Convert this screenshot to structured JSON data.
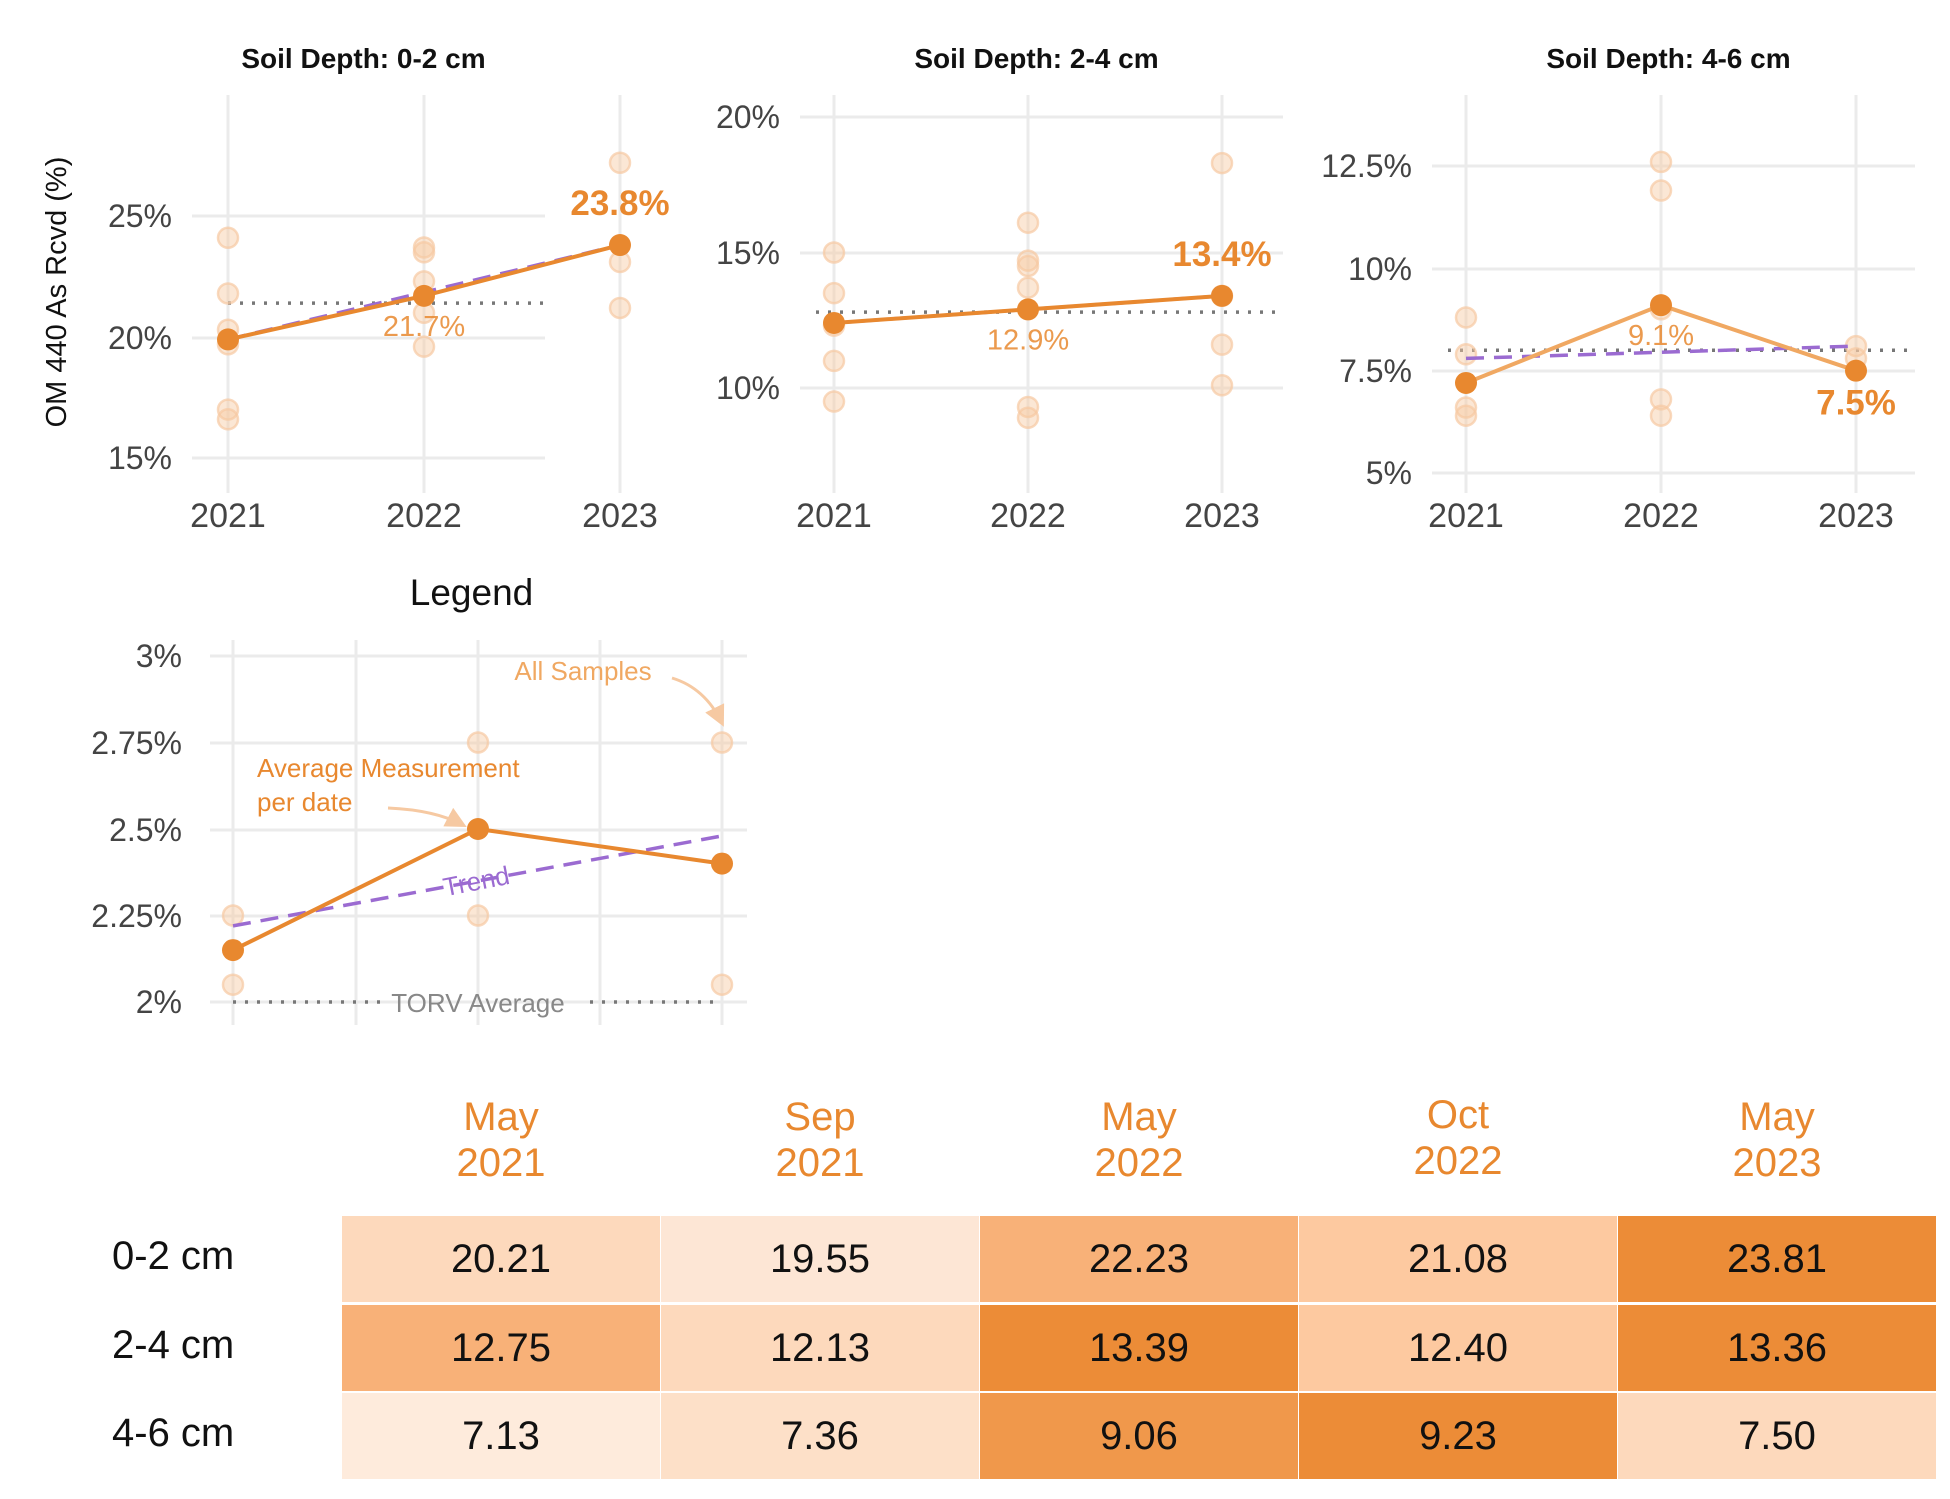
{
  "y_axis_label": "OM 440 As Rcvd (%)",
  "colors": {
    "accent": "#e8882f",
    "sample": "#f6c9a2",
    "trend": "#9b6bd1",
    "torv": "#777777",
    "grid": "#ebebeb"
  },
  "chart_data": [
    {
      "type": "line",
      "title": "Soil Depth: 0-2 cm",
      "ylabel": "OM 440 As Rcvd (%)",
      "x": [
        "2021",
        "2022",
        "2023"
      ],
      "ylim": [
        14.2,
        29.2
      ],
      "yticks": [
        15,
        20,
        25
      ],
      "ytick_labels": [
        "15%",
        "20%",
        "25%"
      ],
      "samples": [
        [
          2021,
          24.1
        ],
        [
          2021,
          21.8
        ],
        [
          2021,
          20.3
        ],
        [
          2021,
          19.7
        ],
        [
          2021,
          17.0
        ],
        [
          2021,
          16.6
        ],
        [
          2022,
          23.7
        ],
        [
          2022,
          23.5
        ],
        [
          2022,
          22.3
        ],
        [
          2022,
          21.0
        ],
        [
          2022,
          19.6
        ],
        [
          2023,
          27.2
        ],
        [
          2023,
          23.1
        ],
        [
          2023,
          21.2
        ]
      ],
      "average": [
        19.9,
        21.7,
        23.8
      ],
      "trend": [
        19.9,
        21.85,
        23.8
      ],
      "torv_average": 21.4,
      "labels": [
        "",
        "21.7%",
        "23.8%"
      ]
    },
    {
      "type": "line",
      "title": "Soil Depth: 2-4 cm",
      "ylabel": "",
      "x": [
        "2021",
        "2022",
        "2023"
      ],
      "ylim": [
        6.1,
        20.8
      ],
      "yticks": [
        10,
        15,
        20
      ],
      "ytick_labels": [
        "10%",
        "15%",
        "20%"
      ],
      "samples": [
        [
          2021,
          15.0
        ],
        [
          2021,
          13.5
        ],
        [
          2021,
          12.3
        ],
        [
          2021,
          11.0
        ],
        [
          2021,
          9.5
        ],
        [
          2022,
          16.1
        ],
        [
          2022,
          14.7
        ],
        [
          2022,
          14.5
        ],
        [
          2022,
          13.7
        ],
        [
          2022,
          9.3
        ],
        [
          2022,
          8.9
        ],
        [
          2023,
          18.3
        ],
        [
          2023,
          13.4
        ],
        [
          2023,
          11.6
        ],
        [
          2023,
          10.1
        ]
      ],
      "average": [
        12.4,
        12.9,
        13.4
      ],
      "trend": [
        12.4,
        12.9,
        13.4
      ],
      "torv_average": 12.8,
      "labels": [
        "",
        "12.9%",
        "13.4%"
      ]
    },
    {
      "type": "line",
      "title": "Soil Depth: 4-6 cm",
      "ylabel": "",
      "x": [
        "2021",
        "2022",
        "2023"
      ],
      "ylim": [
        4.6,
        14.5
      ],
      "yticks": [
        5,
        7.5,
        10,
        12.5
      ],
      "ytick_labels": [
        "5%",
        "7.5%",
        "10%",
        "12.5%"
      ],
      "samples": [
        [
          2021,
          8.8
        ],
        [
          2021,
          7.9
        ],
        [
          2021,
          6.6
        ],
        [
          2021,
          6.4
        ],
        [
          2022,
          12.6
        ],
        [
          2022,
          11.9
        ],
        [
          2022,
          9.0
        ],
        [
          2022,
          6.8
        ],
        [
          2022,
          6.4
        ],
        [
          2023,
          8.1
        ],
        [
          2023,
          7.8
        ]
      ],
      "average": [
        7.2,
        9.1,
        7.5
      ],
      "trend": [
        7.8,
        7.95,
        8.1
      ],
      "torv_average": 8.0,
      "labels": [
        "",
        "9.1%",
        "7.5%"
      ]
    },
    {
      "type": "line",
      "title": "Legend",
      "ylabel": "",
      "x": [
        "",
        "",
        ""
      ],
      "ylim": [
        1.95,
        3.05
      ],
      "yticks": [
        2,
        2.25,
        2.5,
        2.75,
        3
      ],
      "ytick_labels": [
        "2%",
        "2.25%",
        "2.5%",
        "2.75%",
        "3%"
      ],
      "samples": [
        [
          1,
          2.25
        ],
        [
          1,
          2.05
        ],
        [
          2,
          2.75
        ],
        [
          2,
          2.25
        ],
        [
          3,
          2.75
        ],
        [
          3,
          2.05
        ]
      ],
      "average": [
        2.15,
        2.5,
        2.4
      ],
      "trend": [
        2.22,
        2.35,
        2.48
      ],
      "torv_average": 2.0,
      "annotations": [
        "All Samples",
        "Average Measurement",
        "per date",
        "Trend",
        "TORV Average"
      ]
    },
    {
      "type": "heatmap",
      "columns": [
        {
          "month": "May",
          "year": "2021"
        },
        {
          "month": "Sep",
          "year": "2021"
        },
        {
          "month": "May",
          "year": "2022"
        },
        {
          "month": "Oct",
          "year": "2022"
        },
        {
          "month": "May",
          "year": "2023"
        }
      ],
      "rows": [
        {
          "label": "0-2 cm",
          "values": [
            "20.21",
            "19.55",
            "22.23",
            "21.08",
            "23.81"
          ],
          "colors": [
            "#fdd9bc",
            "#fde6d5",
            "#f8b178",
            "#fdc9a0",
            "#ec8c37"
          ]
        },
        {
          "label": "2-4 cm",
          "values": [
            "12.75",
            "12.13",
            "13.39",
            "12.40",
            "13.36"
          ],
          "colors": [
            "#f8b178",
            "#fdd9bc",
            "#ec8c37",
            "#fdc9a0",
            "#ec8c37"
          ]
        },
        {
          "label": "4-6 cm",
          "values": [
            "7.13",
            "7.36",
            "9.06",
            "9.23",
            "7.50"
          ],
          "colors": [
            "#feebdc",
            "#fde0c8",
            "#f0984b",
            "#ec8c37",
            "#fdd9bc"
          ]
        }
      ]
    }
  ]
}
